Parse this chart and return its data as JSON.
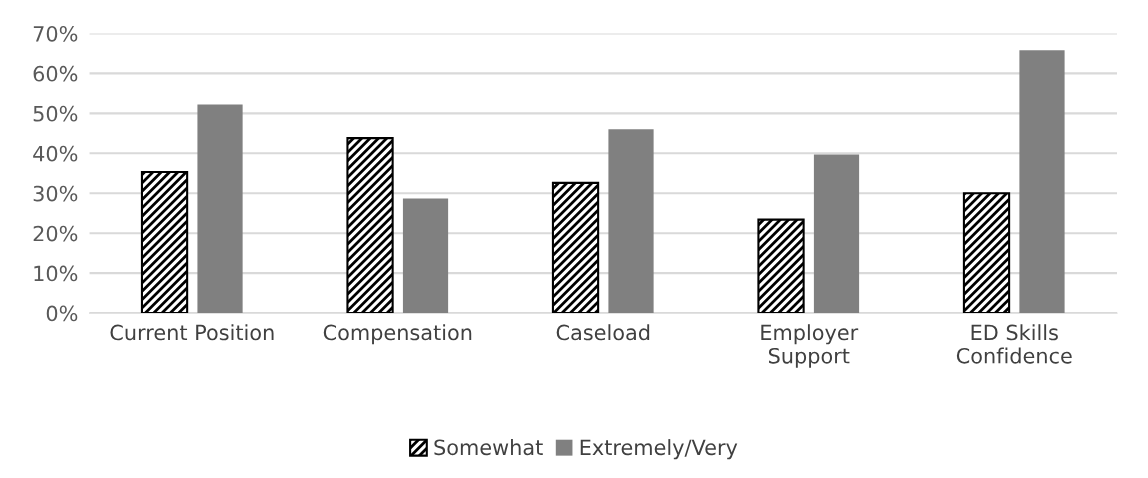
{
  "chart_data": {
    "type": "bar",
    "categories": [
      "Current Position",
      "Compensation",
      "Caseload",
      "Employer\nSupport",
      "ED Skills\nConfidence"
    ],
    "series": [
      {
        "name": "Somewhat",
        "color": "#000000",
        "values": [
          35.3,
          43.8,
          32.6,
          23.4,
          30.0
        ]
      },
      {
        "name": "Extremely/Very",
        "color": "#808080",
        "values": [
          52.2,
          28.7,
          46.0,
          39.7,
          65.8
        ]
      }
    ],
    "ylim": [
      0,
      70
    ],
    "yticks": [
      {
        "value": 0,
        "label": "0%"
      },
      {
        "value": 10,
        "label": "10%"
      },
      {
        "value": 20,
        "label": "20%"
      },
      {
        "value": 30,
        "label": "30%"
      },
      {
        "value": 40,
        "label": "40%"
      },
      {
        "value": 50,
        "label": "50%"
      },
      {
        "value": 60,
        "label": "60%"
      },
      {
        "value": 70,
        "label": "70%"
      }
    ],
    "grid": "y",
    "legend": "bottom"
  }
}
